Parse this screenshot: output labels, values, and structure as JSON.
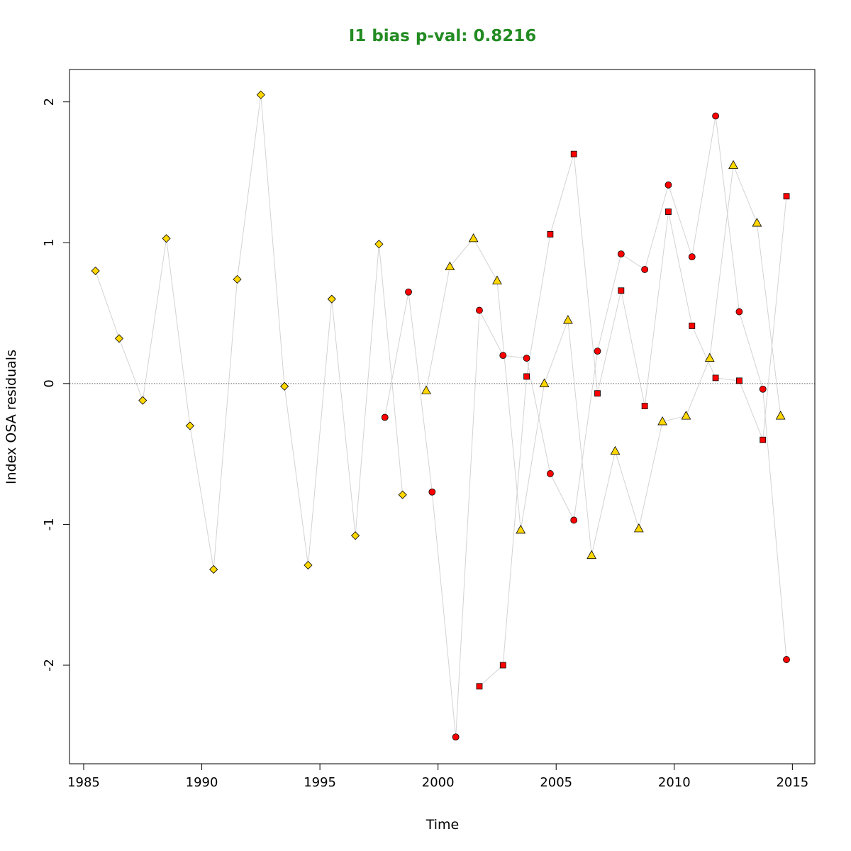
{
  "chart_data": {
    "type": "scatter",
    "title": "I1 bias p-val: 0.8216",
    "xlabel": "Time",
    "ylabel": "Index OSA residuals",
    "xlim": [
      1984.4,
      2015.95
    ],
    "ylim": [
      -2.7,
      2.23
    ],
    "xticks": [
      1985,
      1990,
      1995,
      2000,
      2005,
      2010,
      2015
    ],
    "xtick_labels": [
      "1985",
      "1990",
      "1995",
      "2000",
      "2005",
      "2010",
      "2015"
    ],
    "yticks": [
      -2,
      -1,
      0,
      1,
      2
    ],
    "ytick_labels": [
      "-2",
      "-1",
      "0",
      "1",
      "2"
    ],
    "reference_line": 0,
    "grid": false,
    "legend": "none",
    "colors": {
      "title": "#228B22",
      "gold": "#FFD700",
      "red": "#FF0000",
      "connector": "#D3D3D3",
      "reference": "#666666"
    },
    "series": [
      {
        "marker": "diamond",
        "color": "#FFD700",
        "x": [
          1985.5,
          1986.5,
          1987.5,
          1988.5,
          1989.5,
          1990.5,
          1991.5,
          1992.5,
          1993.5,
          1994.5,
          1995.5,
          1996.5,
          1997.5,
          1998.5
        ],
        "y": [
          0.8,
          0.32,
          -0.12,
          1.03,
          -0.3,
          -1.32,
          0.74,
          2.05,
          -0.02,
          -1.29,
          0.6,
          -1.08,
          0.99,
          -0.79
        ]
      },
      {
        "marker": "triangle",
        "color": "#FFD700",
        "x": [
          1999.5,
          2000.5,
          2001.5,
          2002.5,
          2003.5,
          2004.5,
          2005.5,
          2006.5,
          2007.5,
          2008.5,
          2009.5,
          2010.5,
          2011.5,
          2012.5,
          2013.5,
          2014.5
        ],
        "y": [
          -0.05,
          0.83,
          1.03,
          0.73,
          -1.04,
          0.0,
          0.45,
          -1.22,
          -0.48,
          -1.03,
          -0.27,
          -0.23,
          0.18,
          1.55,
          1.14,
          -0.23
        ]
      },
      {
        "marker": "circle",
        "color": "#FF0000",
        "x": [
          1997.75,
          1998.75,
          1999.75,
          2000.75,
          2001.75,
          2002.75,
          2003.75,
          2004.75,
          2005.75,
          2006.75,
          2007.75,
          2008.75,
          2009.75,
          2010.75,
          2011.75,
          2012.75,
          2013.75,
          2014.75
        ],
        "y": [
          -0.24,
          0.65,
          -0.77,
          -2.51,
          0.52,
          0.2,
          0.18,
          -0.64,
          -0.97,
          0.23,
          0.92,
          0.81,
          1.41,
          0.9,
          1.9,
          0.51,
          -0.04,
          -1.96
        ]
      },
      {
        "marker": "square",
        "color": "#FF0000",
        "x": [
          2001.75,
          2002.75,
          2003.75,
          2004.75,
          2005.75,
          2006.75,
          2007.75,
          2008.75,
          2009.75,
          2010.75,
          2011.75,
          2012.75,
          2013.75,
          2014.75
        ],
        "y": [
          -2.15,
          -2.0,
          0.05,
          1.06,
          1.63,
          -0.07,
          0.66,
          -0.16,
          1.22,
          0.41,
          0.04,
          0.02,
          -0.4,
          1.33
        ]
      }
    ]
  }
}
